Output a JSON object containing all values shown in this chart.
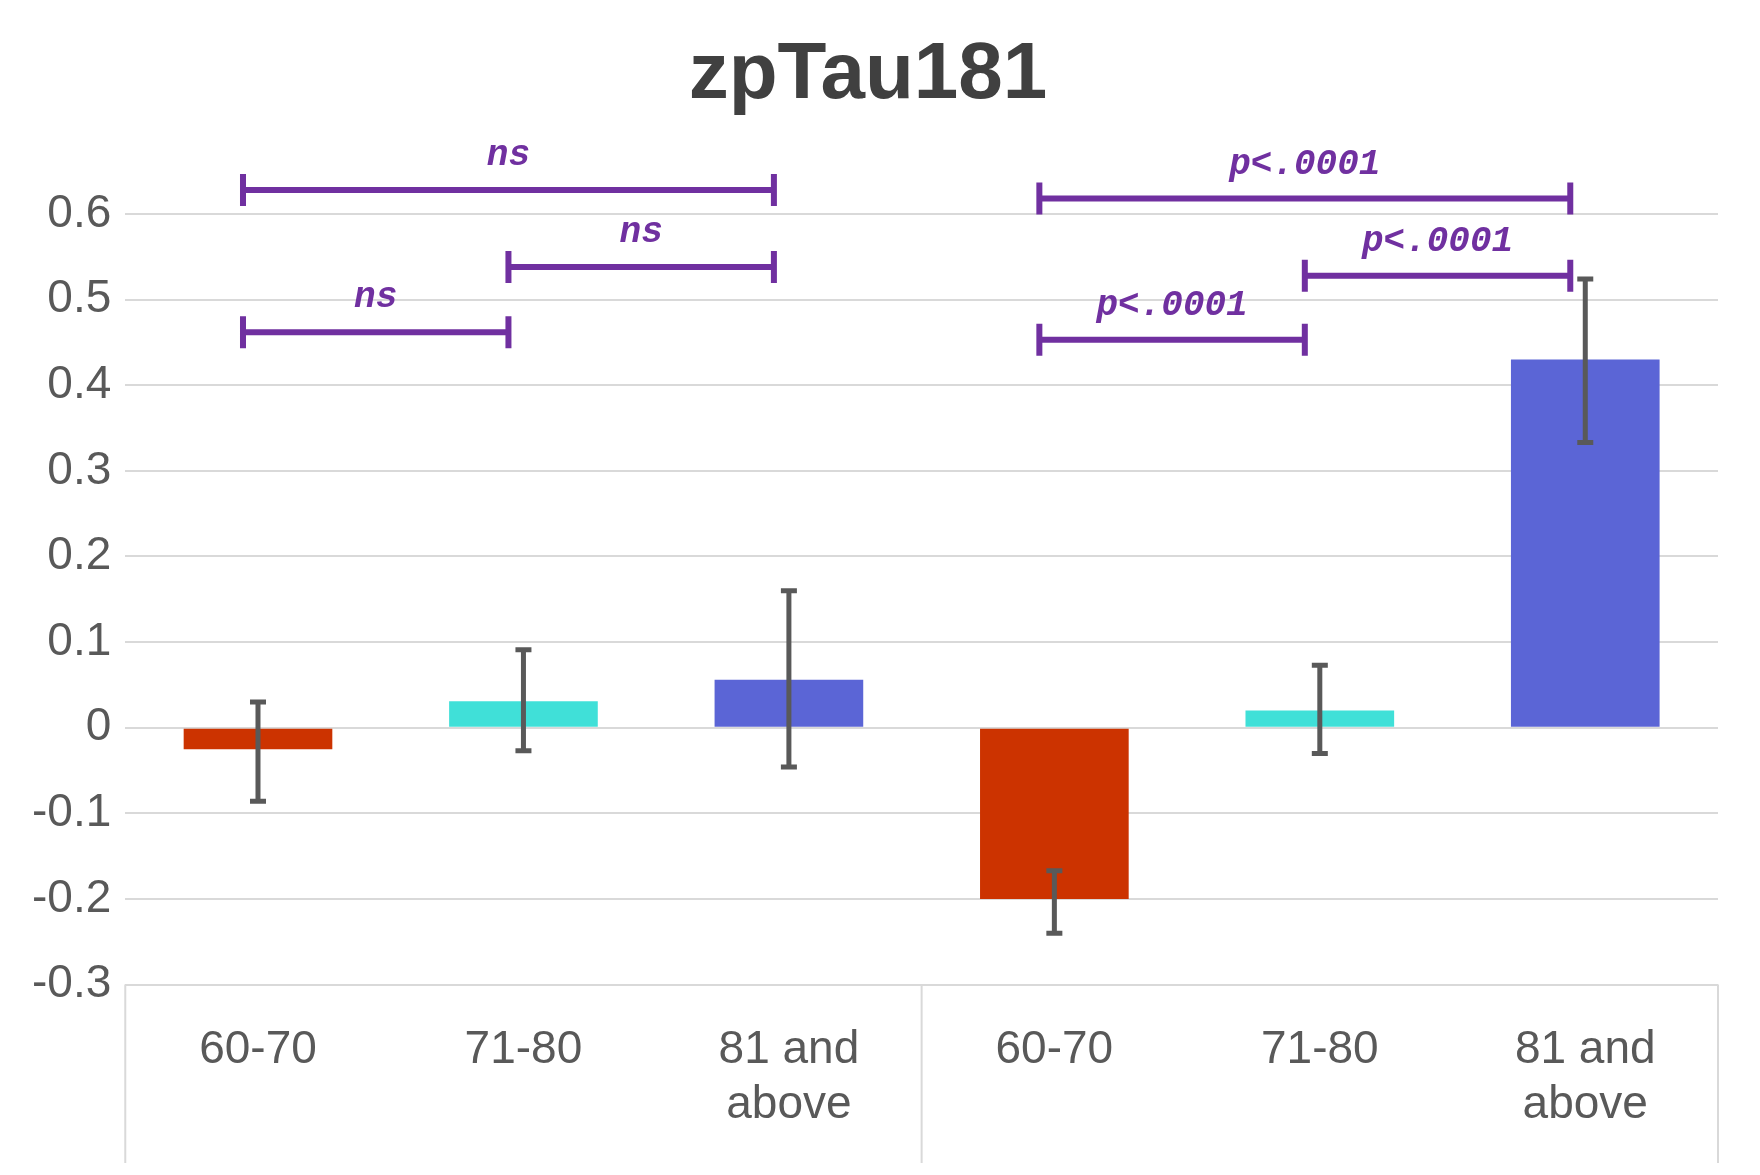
{
  "chart_data": {
    "type": "bar",
    "title": "zpTau181",
    "categories": [
      "60-70",
      "71-80",
      "81 and above",
      "60-70",
      "71-80",
      "81 and above"
    ],
    "values": [
      -0.025,
      0.031,
      0.056,
      -0.2,
      0.02,
      0.43
    ],
    "colors": [
      "#cc3300",
      "#40e0d8",
      "#5b65d6",
      "#cc3300",
      "#40e0d8",
      "#5b65d6"
    ],
    "errors": [
      [
        -0.086,
        0.03
      ],
      [
        -0.027,
        0.091
      ],
      [
        -0.046,
        0.16
      ],
      [
        -0.24,
        -0.167
      ],
      [
        -0.03,
        0.073
      ],
      [
        0.333,
        0.524
      ]
    ],
    "ylim": [
      -0.3,
      0.6
    ],
    "yticks": [
      -0.3,
      -0.2,
      -0.1,
      0,
      0.1,
      0.2,
      0.3,
      0.4,
      0.5,
      0.6
    ],
    "grid": "y",
    "legend": false,
    "annotations": [
      "ns",
      "ns",
      "ns",
      "p<.0001",
      "p<.0001",
      "p<.0001"
    ]
  }
}
